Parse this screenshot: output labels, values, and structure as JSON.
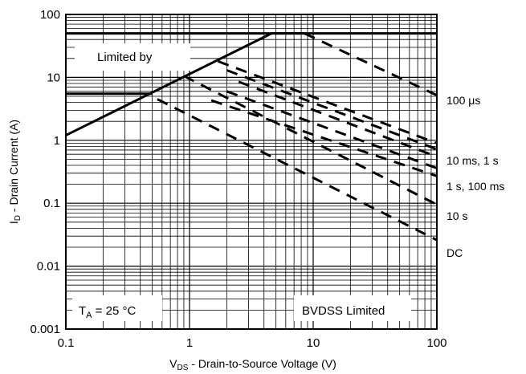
{
  "chart_data": {
    "type": "line",
    "title": "",
    "xlabel_main": "V",
    "xlabel_sub": "DS",
    "xlabel_rest": " - Drain-to-Source Voltage (V)",
    "ylabel_main": "I",
    "ylabel_sub": "D",
    "ylabel_rest": " - Drain Current (A)",
    "x_scale": "log",
    "y_scale": "log",
    "xlim": [
      0.1,
      100
    ],
    "ylim": [
      0.001,
      100
    ],
    "grid": true,
    "x_ticks": [
      "0.1",
      "1",
      "10",
      "100"
    ],
    "y_ticks": [
      "100",
      "10",
      "1",
      "0.1",
      "0.01",
      "0.001"
    ],
    "annotations": {
      "limited_by": "Limited by",
      "ta_main": "T",
      "ta_sub": "A",
      "ta_rest": " = 25 °C",
      "bvdss": "BVDSS Limited"
    },
    "limits": {
      "current_limit": 50,
      "low_limit": 5.5,
      "rds_line": [
        [
          0.1,
          1.2
        ],
        [
          4.6,
          50
        ]
      ]
    },
    "series": [
      {
        "name": "100 μs",
        "points": [
          [
            4.6,
            50
          ],
          [
            8.5,
            50
          ],
          [
            100,
            5.2
          ]
        ]
      },
      {
        "name": "",
        "points": [
          [
            1.7,
            18
          ],
          [
            100,
            0.9
          ]
        ]
      },
      {
        "name": "",
        "points": [
          [
            2.0,
            13
          ],
          [
            100,
            0.72
          ]
        ]
      },
      {
        "name": "10 ms, 1 s",
        "points": [
          [
            2.5,
            8.5
          ],
          [
            100,
            0.55
          ]
        ]
      },
      {
        "name": "",
        "points": [
          [
            2.0,
            6.0
          ],
          [
            100,
            0.36
          ]
        ]
      },
      {
        "name": "1 s, 100 ms",
        "points": [
          [
            1.5,
            4.3
          ],
          [
            100,
            0.27
          ]
        ]
      },
      {
        "name": "10 s",
        "points": [
          [
            0.9,
            10.5
          ],
          [
            100,
            0.095
          ]
        ]
      },
      {
        "name": "DC",
        "points": [
          [
            0.55,
            4.5
          ],
          [
            100,
            0.026
          ]
        ]
      }
    ]
  }
}
